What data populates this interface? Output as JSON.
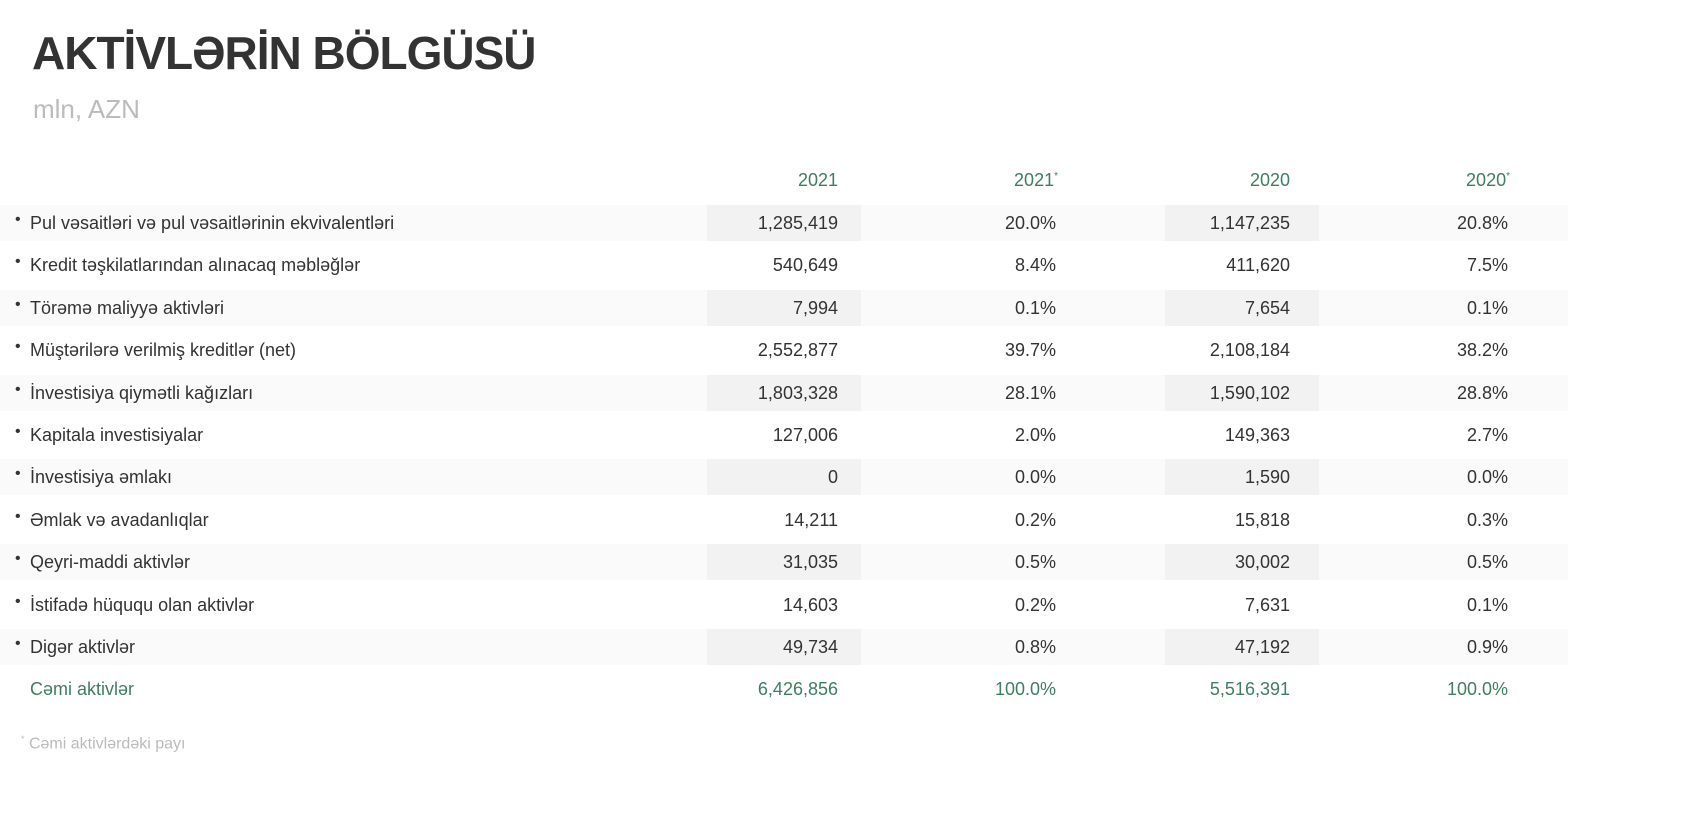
{
  "title": "AKTİVLƏRİN BÖLGÜSÜ",
  "subtitle": "mln, AZN",
  "headers": [
    "2021",
    "2021",
    "2020",
    "2020"
  ],
  "header_marks": [
    "",
    "*",
    "",
    "*"
  ],
  "rows": [
    {
      "label": "Pul vəsaitləri və pul vəsaitlərinin ekvivalentləri",
      "v2021": "1,285,419",
      "p2021": "20.0%",
      "v2020": "1,147,235",
      "p2020": "20.8%"
    },
    {
      "label": "Kredit təşkilatlarından alınacaq məbləğlər",
      "v2021": "540,649",
      "p2021": "8.4%",
      "v2020": "411,620",
      "p2020": "7.5%"
    },
    {
      "label": "Törəmə maliyyə aktivləri",
      "v2021": "7,994",
      "p2021": "0.1%",
      "v2020": "7,654",
      "p2020": "0.1%"
    },
    {
      "label": "Müştərilərə verilmiş kreditlər (net)",
      "v2021": "2,552,877",
      "p2021": "39.7%",
      "v2020": "2,108,184",
      "p2020": "38.2%"
    },
    {
      "label": "İnvestisiya qiymətli kağızları",
      "v2021": "1,803,328",
      "p2021": "28.1%",
      "v2020": "1,590,102",
      "p2020": "28.8%"
    },
    {
      "label": "Kapitala investisiyalar",
      "v2021": "127,006",
      "p2021": "2.0%",
      "v2020": "149,363",
      "p2020": "2.7%"
    },
    {
      "label": "İnvestisiya əmlakı",
      "v2021": "0",
      "p2021": "0.0%",
      "v2020": "1,590",
      "p2020": "0.0%"
    },
    {
      "label": "Əmlak və avadanlıqlar",
      "v2021": "14,211",
      "p2021": "0.2%",
      "v2020": "15,818",
      "p2020": "0.3%"
    },
    {
      "label": "Qeyri-maddi aktivlər",
      "v2021": "31,035",
      "p2021": "0.5%",
      "v2020": "30,002",
      "p2020": "0.5%"
    },
    {
      "label": "İstifadə hüququ olan aktivlər",
      "v2021": "14,603",
      "p2021": "0.2%",
      "v2020": "7,631",
      "p2020": "0.1%"
    },
    {
      "label": "Digər aktivlər",
      "v2021": "49,734",
      "p2021": "0.8%",
      "v2020": "47,192",
      "p2020": "0.9%"
    }
  ],
  "total": {
    "label": "Cəmi aktivlər",
    "v2021": "6,426,856",
    "p2021": "100.0%",
    "v2020": "5,516,391",
    "p2020": "100.0%"
  },
  "footnote": {
    "mark": "*",
    "text": " Cəmi aktivlərdəki payı"
  },
  "colors": {
    "accent": "#3f7d62",
    "text": "#333333",
    "muted": "#bbbbbb",
    "band": "#fafafa",
    "cell": "#f2f2f2"
  }
}
